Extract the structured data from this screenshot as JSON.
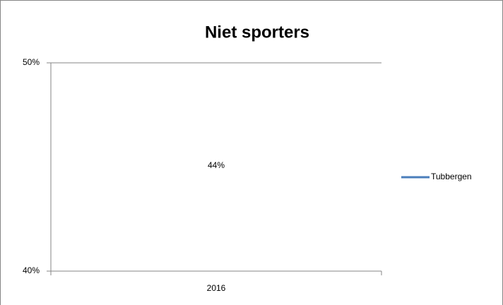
{
  "chart_data": {
    "type": "line",
    "title": "Niet sporters",
    "categories": [
      "2016"
    ],
    "series": [
      {
        "name": "Tubbergen",
        "color": "#4a7ebb",
        "values": [
          44
        ],
        "value_labels": [
          "44%"
        ]
      }
    ],
    "ylim": [
      40,
      50
    ],
    "yticks": [
      {
        "value": 40,
        "label": "40%"
      },
      {
        "value": 50,
        "label": "50%"
      }
    ],
    "grid": true,
    "legend": "right"
  }
}
